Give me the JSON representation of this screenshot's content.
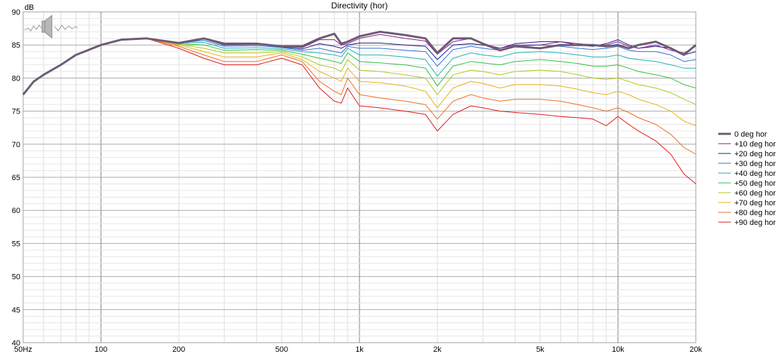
{
  "chart_data": {
    "type": "line",
    "title": "Directivity (hor)",
    "ylabel": "dB",
    "xlabel": "",
    "x_scale": "log",
    "xlim": [
      50,
      20000
    ],
    "ylim": [
      40,
      90
    ],
    "x_ticks": [
      {
        "value": 50,
        "label": "50Hz"
      },
      {
        "value": 100,
        "label": "100"
      },
      {
        "value": 200,
        "label": "200"
      },
      {
        "value": 500,
        "label": "500"
      },
      {
        "value": 1000,
        "label": "1k"
      },
      {
        "value": 2000,
        "label": "2k"
      },
      {
        "value": 5000,
        "label": "5k"
      },
      {
        "value": 10000,
        "label": "10k"
      },
      {
        "value": 20000,
        "label": "20k"
      }
    ],
    "y_ticks": [
      40,
      45,
      50,
      55,
      60,
      65,
      70,
      75,
      80,
      85,
      90
    ],
    "grid": true,
    "legend_position": "right",
    "x": [
      50,
      55,
      60,
      70,
      80,
      100,
      120,
      150,
      200,
      250,
      300,
      400,
      500,
      600,
      700,
      800,
      850,
      900,
      1000,
      1200,
      1500,
      1800,
      2000,
      2300,
      2700,
      3000,
      3500,
      4000,
      5000,
      6000,
      7000,
      8000,
      9000,
      10000,
      11000,
      12000,
      14000,
      16000,
      18000,
      20000
    ],
    "series": [
      {
        "name": "0 deg hor",
        "color": "#6b5b73",
        "width": 3,
        "values": [
          77.5,
          79.5,
          80.5,
          82,
          83.5,
          85,
          85.8,
          86,
          85.3,
          86,
          85.2,
          85.2,
          84.8,
          84.8,
          86,
          86.7,
          85.2,
          85.5,
          86.3,
          87,
          86.5,
          86,
          83.8,
          86,
          86,
          85.2,
          84.2,
          84.8,
          84.5,
          85,
          85,
          85,
          84.8,
          85,
          84.5,
          85,
          85.5,
          84.5,
          83.5,
          85
        ]
      },
      {
        "name": "+10 deg hor",
        "color": "#8b1a8b",
        "width": 1,
        "values": [
          77.5,
          79.5,
          80.5,
          82,
          83.5,
          85,
          85.8,
          86,
          85.3,
          86,
          85.1,
          85.2,
          84.8,
          84.6,
          85.8,
          85.8,
          85,
          85.2,
          86,
          86.6,
          86,
          85.6,
          83.6,
          85.5,
          86,
          85.2,
          84.5,
          85,
          85,
          85.5,
          85.2,
          85,
          85,
          85.5,
          84.8,
          84.5,
          85,
          84.2,
          83.8,
          84.8
        ]
      },
      {
        "name": "+20 deg hor",
        "color": "#1a1a8b",
        "width": 1,
        "values": [
          77.5,
          79.5,
          80.5,
          82,
          83.5,
          85,
          85.8,
          86,
          85.3,
          85.9,
          85,
          85.1,
          84.7,
          84.4,
          85.2,
          84.8,
          84.5,
          85,
          85.3,
          85.3,
          85,
          84.8,
          82.8,
          85,
          85.2,
          85,
          84.5,
          85.2,
          85.5,
          85.5,
          85,
          84.8,
          85.2,
          85.8,
          85,
          84.5,
          84.8,
          84.5,
          83.5,
          84
        ]
      },
      {
        "name": "+30 deg hor",
        "color": "#3070d0",
        "width": 1,
        "values": [
          77.5,
          79.5,
          80.5,
          82,
          83.5,
          85,
          85.8,
          86,
          85.3,
          85.7,
          84.8,
          84.9,
          84.6,
          84.2,
          84.5,
          84,
          83.8,
          84.8,
          84.5,
          84.5,
          84.2,
          84,
          81.8,
          84.3,
          84.8,
          84.5,
          84.2,
          84.8,
          85,
          84.8,
          84.5,
          84.3,
          84.5,
          84.8,
          84.2,
          84,
          84,
          83.5,
          82.5,
          82.8
        ]
      },
      {
        "name": "+40 deg hor",
        "color": "#20b0b0",
        "width": 1,
        "values": [
          77.5,
          79.5,
          80.5,
          82,
          83.5,
          85,
          85.8,
          86,
          85.3,
          85.4,
          84.5,
          84.6,
          84.4,
          84,
          83.8,
          83.5,
          83.2,
          84.5,
          83.5,
          83.5,
          83.2,
          82.8,
          80.3,
          83,
          83.8,
          83.5,
          83.2,
          83.8,
          84,
          83.8,
          83.5,
          83.2,
          83.2,
          83.5,
          83,
          82.8,
          82.5,
          82,
          81.5,
          81.5
        ]
      },
      {
        "name": "+50 deg hor",
        "color": "#30c040",
        "width": 1,
        "values": [
          77.5,
          79.5,
          80.5,
          82,
          83.5,
          85,
          85.8,
          86,
          85.2,
          85,
          84.2,
          84.3,
          84.2,
          83.6,
          83,
          82.5,
          82.2,
          83.8,
          82.5,
          82.3,
          82,
          81.5,
          78.8,
          81.8,
          82.5,
          82.3,
          82,
          82.5,
          82.8,
          82.5,
          82.2,
          81.8,
          81.8,
          82,
          81.5,
          81,
          80.5,
          80,
          79,
          78.5
        ]
      },
      {
        "name": "+60 deg hor",
        "color": "#b0c818",
        "width": 1,
        "values": [
          77.5,
          79.5,
          80.5,
          82,
          83.5,
          85,
          85.8,
          86,
          85.1,
          84.5,
          83.8,
          83.8,
          84,
          83.2,
          82,
          81.5,
          81,
          82.8,
          81.2,
          81,
          80.5,
          80,
          77.5,
          80.5,
          81.2,
          81,
          80.5,
          81,
          81.2,
          81,
          80.5,
          80,
          79.8,
          80,
          79.5,
          79,
          78.5,
          77.8,
          76.8,
          76
        ]
      },
      {
        "name": "+70 deg hor",
        "color": "#e8b010",
        "width": 1,
        "values": [
          77.5,
          79.5,
          80.5,
          82,
          83.5,
          85,
          85.8,
          86,
          85,
          84,
          83.2,
          83.2,
          83.8,
          82.8,
          81,
          80,
          79.5,
          81.5,
          79.5,
          79.3,
          78.8,
          78,
          75.5,
          78.5,
          79.5,
          79.2,
          78.5,
          79,
          79,
          78.8,
          78.3,
          77.8,
          77.5,
          78,
          77.5,
          76.8,
          76,
          75,
          73.5,
          72.8
        ]
      },
      {
        "name": "+80 deg hor",
        "color": "#e87020",
        "width": 1,
        "values": [
          77.5,
          79.5,
          80.5,
          82,
          83.5,
          85,
          85.8,
          86,
          84.8,
          83.5,
          82.5,
          82.5,
          83.5,
          82.5,
          79.5,
          78,
          77.5,
          80,
          77.5,
          77,
          76.5,
          76,
          73.8,
          76.5,
          77.5,
          77,
          76.5,
          76.8,
          76.8,
          76.5,
          76,
          75.5,
          75,
          75.5,
          74.8,
          74,
          73,
          71.5,
          69.5,
          68.5
        ]
      },
      {
        "name": "+90 deg hor",
        "color": "#e01818",
        "width": 1,
        "values": [
          77.5,
          79.5,
          80.5,
          82,
          83.5,
          85,
          85.8,
          86,
          84.5,
          83,
          82,
          82,
          83,
          82,
          78.5,
          76.5,
          76.2,
          78.5,
          75.8,
          75.5,
          75,
          74.5,
          72,
          74.5,
          75.8,
          75.5,
          75,
          74.8,
          74.5,
          74.2,
          74,
          73.8,
          72.8,
          74.2,
          73,
          72,
          70.5,
          68.5,
          65.5,
          64
        ]
      }
    ]
  }
}
